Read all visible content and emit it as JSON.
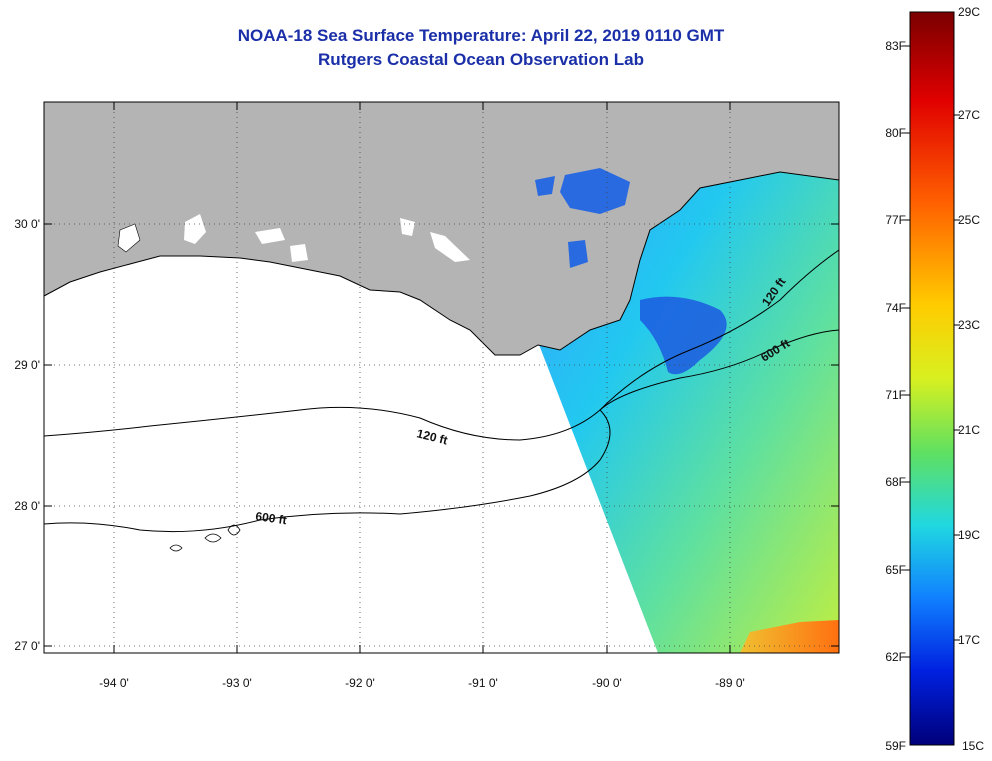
{
  "header": {
    "title": "NOAA-18 Sea Surface Temperature:  April 22, 2019 0110 GMT",
    "subtitle": "Rutgers Coastal Ocean Observation Lab"
  },
  "map": {
    "lon_labels": [
      "-94 0'",
      "-93 0'",
      "-92 0'",
      "-91 0'",
      "-90 0'",
      "-89 0'"
    ],
    "lat_labels": [
      "30 0'",
      "29 0'",
      "28 0'",
      "27 0'"
    ],
    "contours": [
      {
        "label": "120 ft"
      },
      {
        "label": "600 ft"
      },
      {
        "label": "120 ft"
      },
      {
        "label": "600 ft"
      }
    ],
    "colors": {
      "land": "#b4b4b4",
      "ocean_nodata": "#ffffff",
      "contour": "#000000"
    }
  },
  "colorbar": {
    "fahrenheit_labels": [
      "83F",
      "80F",
      "77F",
      "74F",
      "71F",
      "68F",
      "65F",
      "62F",
      "59F"
    ],
    "celsius_labels": [
      "29C",
      "27C",
      "25C",
      "23C",
      "21C",
      "19C",
      "17C",
      "15C"
    ],
    "colors": [
      "#7a0000",
      "#e00000",
      "#ff6000",
      "#ffcc00",
      "#d8f020",
      "#60e060",
      "#20d8e0",
      "#1080ff",
      "#0020e0",
      "#00007a"
    ]
  }
}
